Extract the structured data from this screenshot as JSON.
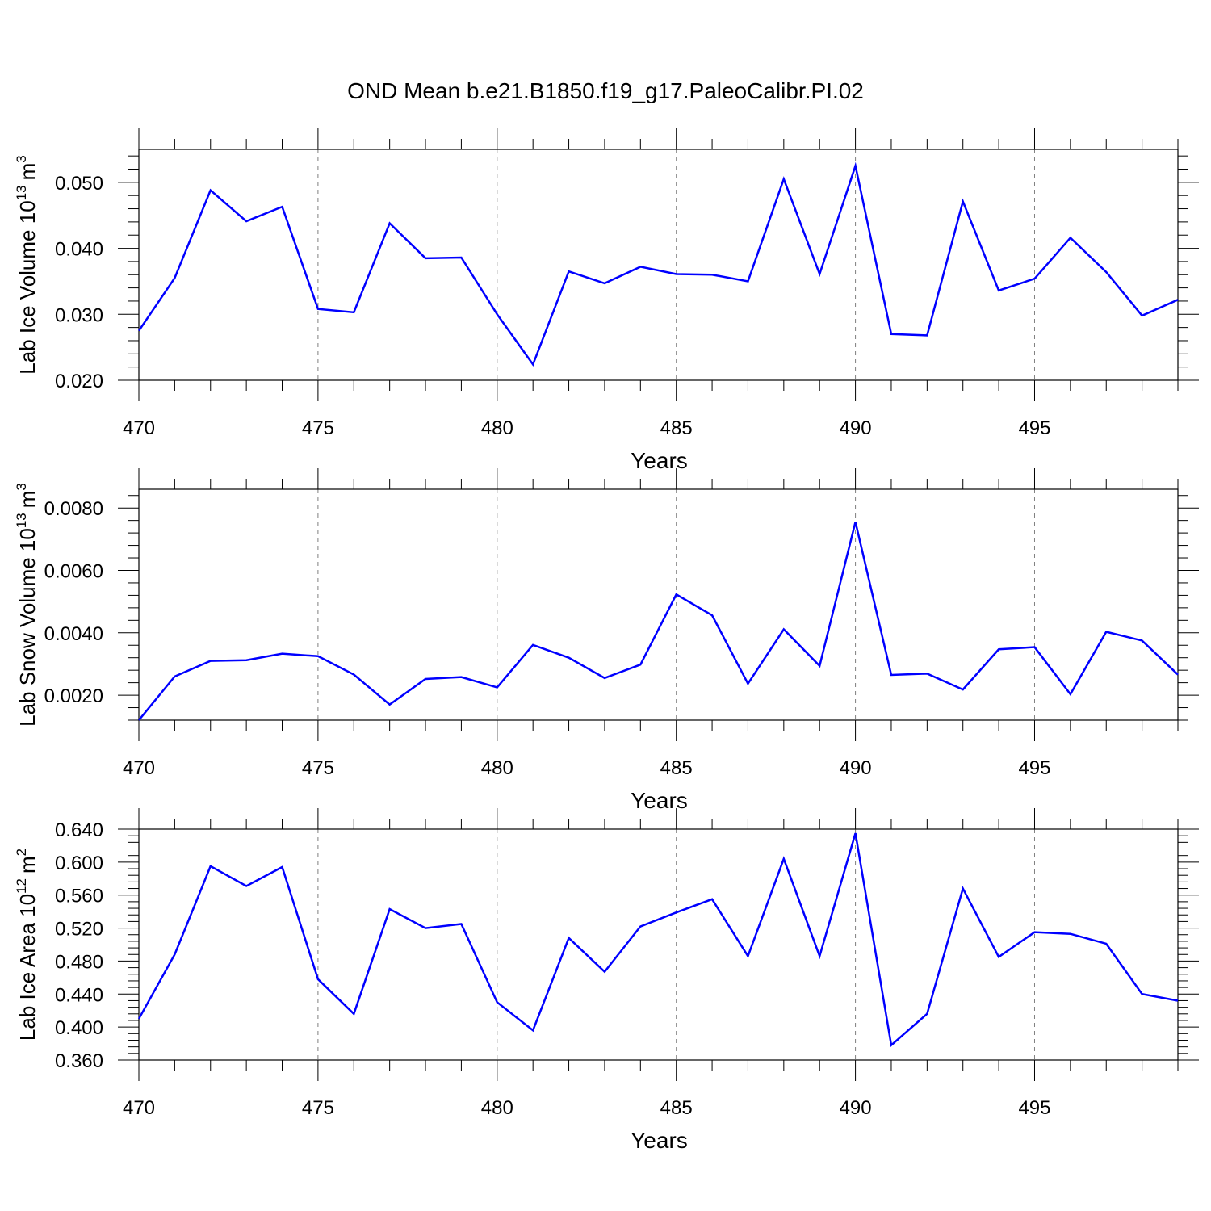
{
  "figure": {
    "title": "OND Mean b.e21.B1850.f19_g17.PaleoCalibr.PI.02"
  },
  "chart_data": [
    {
      "type": "line",
      "ylabel": "Lab Ice Volume 10",
      "ylabel_exp": "13",
      "ylabel_unit": "m",
      "ylabel_unit_exp": "3",
      "xlabel": "Years",
      "xlim": [
        470,
        499
      ],
      "ylim": [
        0.02,
        0.055
      ],
      "xticks": [
        470,
        475,
        480,
        485,
        490,
        495
      ],
      "yticks": [
        0.02,
        0.03,
        0.04,
        0.05
      ],
      "ytick_labels": [
        "0.020",
        "0.030",
        "0.040",
        "0.050"
      ],
      "grid": "vertical dashed at major x ticks",
      "color": "#0000ff",
      "x": [
        470,
        471,
        472,
        473,
        474,
        475,
        476,
        477,
        478,
        479,
        480,
        481,
        482,
        483,
        484,
        485,
        486,
        487,
        488,
        489,
        490,
        491,
        492,
        493,
        494,
        495,
        496,
        497,
        498,
        499
      ],
      "values": [
        0.0275,
        0.0355,
        0.0488,
        0.0441,
        0.0463,
        0.0308,
        0.0303,
        0.0438,
        0.0385,
        0.0386,
        0.03,
        0.0224,
        0.0365,
        0.0347,
        0.0372,
        0.0361,
        0.036,
        0.035,
        0.0505,
        0.0361,
        0.0525,
        0.027,
        0.0268,
        0.0471,
        0.0336,
        0.0354,
        0.0416,
        0.0364,
        0.0298,
        0.0322
      ]
    },
    {
      "type": "line",
      "ylabel": "Lab Snow Volume 10",
      "ylabel_exp": "13",
      "ylabel_unit": "m",
      "ylabel_unit_exp": "3",
      "xlabel": "Years",
      "xlim": [
        470,
        499
      ],
      "ylim": [
        0.0012,
        0.0086
      ],
      "xticks": [
        470,
        475,
        480,
        485,
        490,
        495
      ],
      "yticks": [
        0.002,
        0.004,
        0.006,
        0.008
      ],
      "ytick_labels": [
        "0.0020",
        "0.0040",
        "0.0060",
        "0.0080"
      ],
      "grid": "vertical dashed at major x ticks",
      "color": "#0000ff",
      "x": [
        470,
        471,
        472,
        473,
        474,
        475,
        476,
        477,
        478,
        479,
        480,
        481,
        482,
        483,
        484,
        485,
        486,
        487,
        488,
        489,
        490,
        491,
        492,
        493,
        494,
        495,
        496,
        497,
        498,
        499
      ],
      "values": [
        0.0012,
        0.0026,
        0.0031,
        0.00312,
        0.00333,
        0.00325,
        0.00266,
        0.0017,
        0.00252,
        0.00258,
        0.00225,
        0.00361,
        0.0032,
        0.00255,
        0.00298,
        0.00523,
        0.00456,
        0.00237,
        0.00411,
        0.00294,
        0.00755,
        0.00265,
        0.00269,
        0.00218,
        0.00347,
        0.00354,
        0.00203,
        0.00403,
        0.00375,
        0.00266
      ]
    },
    {
      "type": "line",
      "ylabel": "Lab Ice Area 10",
      "ylabel_exp": "12",
      "ylabel_unit": "m",
      "ylabel_unit_exp": "2",
      "xlabel": "Years",
      "xlim": [
        470,
        499
      ],
      "ylim": [
        0.36,
        0.64
      ],
      "xticks": [
        470,
        475,
        480,
        485,
        490,
        495
      ],
      "yticks": [
        0.36,
        0.4,
        0.44,
        0.48,
        0.52,
        0.56,
        0.6,
        0.64
      ],
      "ytick_labels": [
        "0.360",
        "0.400",
        "0.440",
        "0.480",
        "0.520",
        "0.560",
        "0.600",
        "0.640"
      ],
      "grid": "vertical dashed at major x ticks",
      "color": "#0000ff",
      "x": [
        470,
        471,
        472,
        473,
        474,
        475,
        476,
        477,
        478,
        479,
        480,
        481,
        482,
        483,
        484,
        485,
        486,
        487,
        488,
        489,
        490,
        491,
        492,
        493,
        494,
        495,
        496,
        497,
        498,
        499
      ],
      "values": [
        0.41,
        0.488,
        0.595,
        0.571,
        0.594,
        0.458,
        0.416,
        0.543,
        0.52,
        0.525,
        0.43,
        0.396,
        0.508,
        0.467,
        0.522,
        0.539,
        0.555,
        0.486,
        0.604,
        0.486,
        0.635,
        0.378,
        0.416,
        0.568,
        0.485,
        0.515,
        0.513,
        0.501,
        0.44,
        0.432
      ]
    }
  ]
}
